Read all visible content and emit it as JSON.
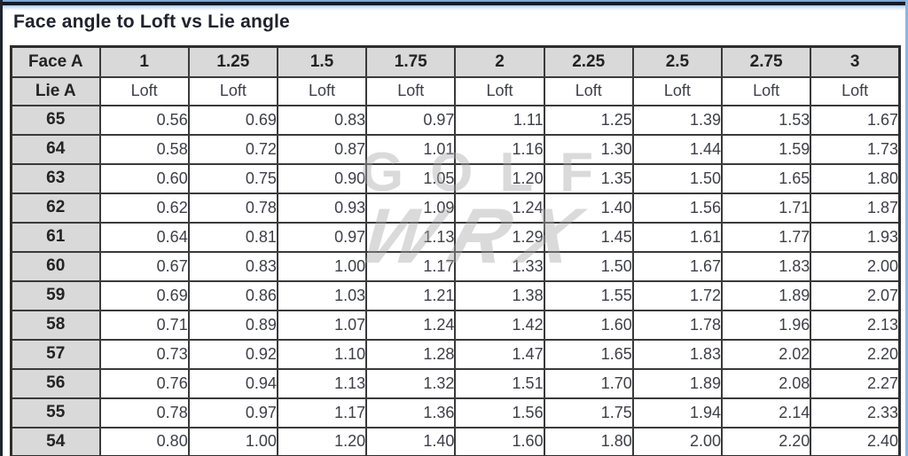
{
  "page": {
    "title": "Face angle to Loft vs Lie angle"
  },
  "watermark": {
    "line1": "GOLF",
    "line2": "WRX"
  },
  "colors": {
    "header_bg": "#d9d9d9",
    "grid_border": "#3a3a3a",
    "title_text": "#20222e",
    "value_text": "#3d3f47",
    "top_rule_navy": "#141a26",
    "top_rule_blue": "#7ba7d7",
    "edge_blue": "#8fb4dc",
    "watermark_gray": "#a8a8a8"
  },
  "chart_data": {
    "type": "table",
    "title": "Face angle to Loft vs Lie angle",
    "corner_header": "Face A",
    "row_axis_header": "Lie A",
    "column_headers": [
      "1",
      "1.25",
      "1.5",
      "1.75",
      "2",
      "2.25",
      "2.5",
      "2.75",
      "3"
    ],
    "subheader_label": "Loft",
    "rows": [
      {
        "lie_angle": "65",
        "values": [
          "0.56",
          "0.69",
          "0.83",
          "0.97",
          "1.11",
          "1.25",
          "1.39",
          "1.53",
          "1.67"
        ]
      },
      {
        "lie_angle": "64",
        "values": [
          "0.58",
          "0.72",
          "0.87",
          "1.01",
          "1.16",
          "1.30",
          "1.44",
          "1.59",
          "1.73"
        ]
      },
      {
        "lie_angle": "63",
        "values": [
          "0.60",
          "0.75",
          "0.90",
          "1.05",
          "1.20",
          "1.35",
          "1.50",
          "1.65",
          "1.80"
        ]
      },
      {
        "lie_angle": "62",
        "values": [
          "0.62",
          "0.78",
          "0.93",
          "1.09",
          "1.24",
          "1.40",
          "1.56",
          "1.71",
          "1.87"
        ]
      },
      {
        "lie_angle": "61",
        "values": [
          "0.64",
          "0.81",
          "0.97",
          "1.13",
          "1.29",
          "1.45",
          "1.61",
          "1.77",
          "1.93"
        ]
      },
      {
        "lie_angle": "60",
        "values": [
          "0.67",
          "0.83",
          "1.00",
          "1.17",
          "1.33",
          "1.50",
          "1.67",
          "1.83",
          "2.00"
        ]
      },
      {
        "lie_angle": "59",
        "values": [
          "0.69",
          "0.86",
          "1.03",
          "1.21",
          "1.38",
          "1.55",
          "1.72",
          "1.89",
          "2.07"
        ]
      },
      {
        "lie_angle": "58",
        "values": [
          "0.71",
          "0.89",
          "1.07",
          "1.24",
          "1.42",
          "1.60",
          "1.78",
          "1.96",
          "2.13"
        ]
      },
      {
        "lie_angle": "57",
        "values": [
          "0.73",
          "0.92",
          "1.10",
          "1.28",
          "1.47",
          "1.65",
          "1.83",
          "2.02",
          "2.20"
        ]
      },
      {
        "lie_angle": "56",
        "values": [
          "0.76",
          "0.94",
          "1.13",
          "1.32",
          "1.51",
          "1.70",
          "1.89",
          "2.08",
          "2.27"
        ]
      },
      {
        "lie_angle": "55",
        "values": [
          "0.78",
          "0.97",
          "1.17",
          "1.36",
          "1.56",
          "1.75",
          "1.94",
          "2.14",
          "2.33"
        ]
      },
      {
        "lie_angle": "54",
        "values": [
          "0.80",
          "1.00",
          "1.20",
          "1.40",
          "1.60",
          "1.80",
          "2.00",
          "2.20",
          "2.40"
        ]
      }
    ]
  }
}
